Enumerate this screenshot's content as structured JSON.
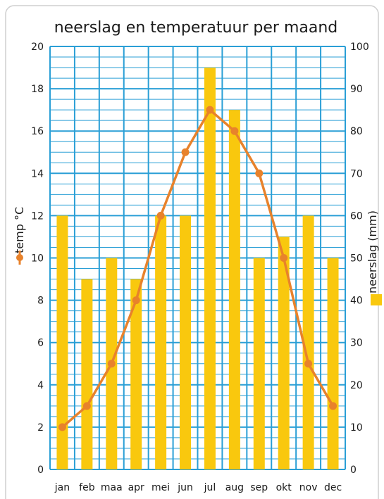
{
  "colors": {
    "bar": "#f9c80e",
    "line": "#e8822b",
    "grid": "#2a9fd6",
    "frame": "#cfcfcf",
    "text": "#1a1a1a"
  },
  "chart_data": {
    "type": "bar",
    "title": "neerslag en temperatuur per maand",
    "categories": [
      "jan",
      "feb",
      "maa",
      "apr",
      "mei",
      "jun",
      "jul",
      "aug",
      "sep",
      "okt",
      "nov",
      "dec"
    ],
    "left_axis": {
      "label": "temp °C",
      "range": [
        0,
        20
      ],
      "ticks": [
        0,
        2,
        4,
        6,
        8,
        10,
        12,
        14,
        16,
        18,
        20
      ]
    },
    "right_axis": {
      "label": "neerslag (mm)",
      "range": [
        0,
        100
      ],
      "ticks": [
        0,
        10,
        20,
        30,
        40,
        50,
        60,
        70,
        80,
        90,
        100
      ]
    },
    "series": [
      {
        "kind": "bar",
        "axis": "right",
        "values": [
          60,
          45,
          50,
          45,
          60,
          60,
          95,
          85,
          50,
          55,
          60,
          50
        ]
      },
      {
        "kind": "line",
        "axis": "left",
        "values": [
          2,
          3,
          5,
          8,
          12,
          15,
          17,
          16,
          14,
          10,
          5,
          3
        ]
      }
    ],
    "grid": true
  }
}
